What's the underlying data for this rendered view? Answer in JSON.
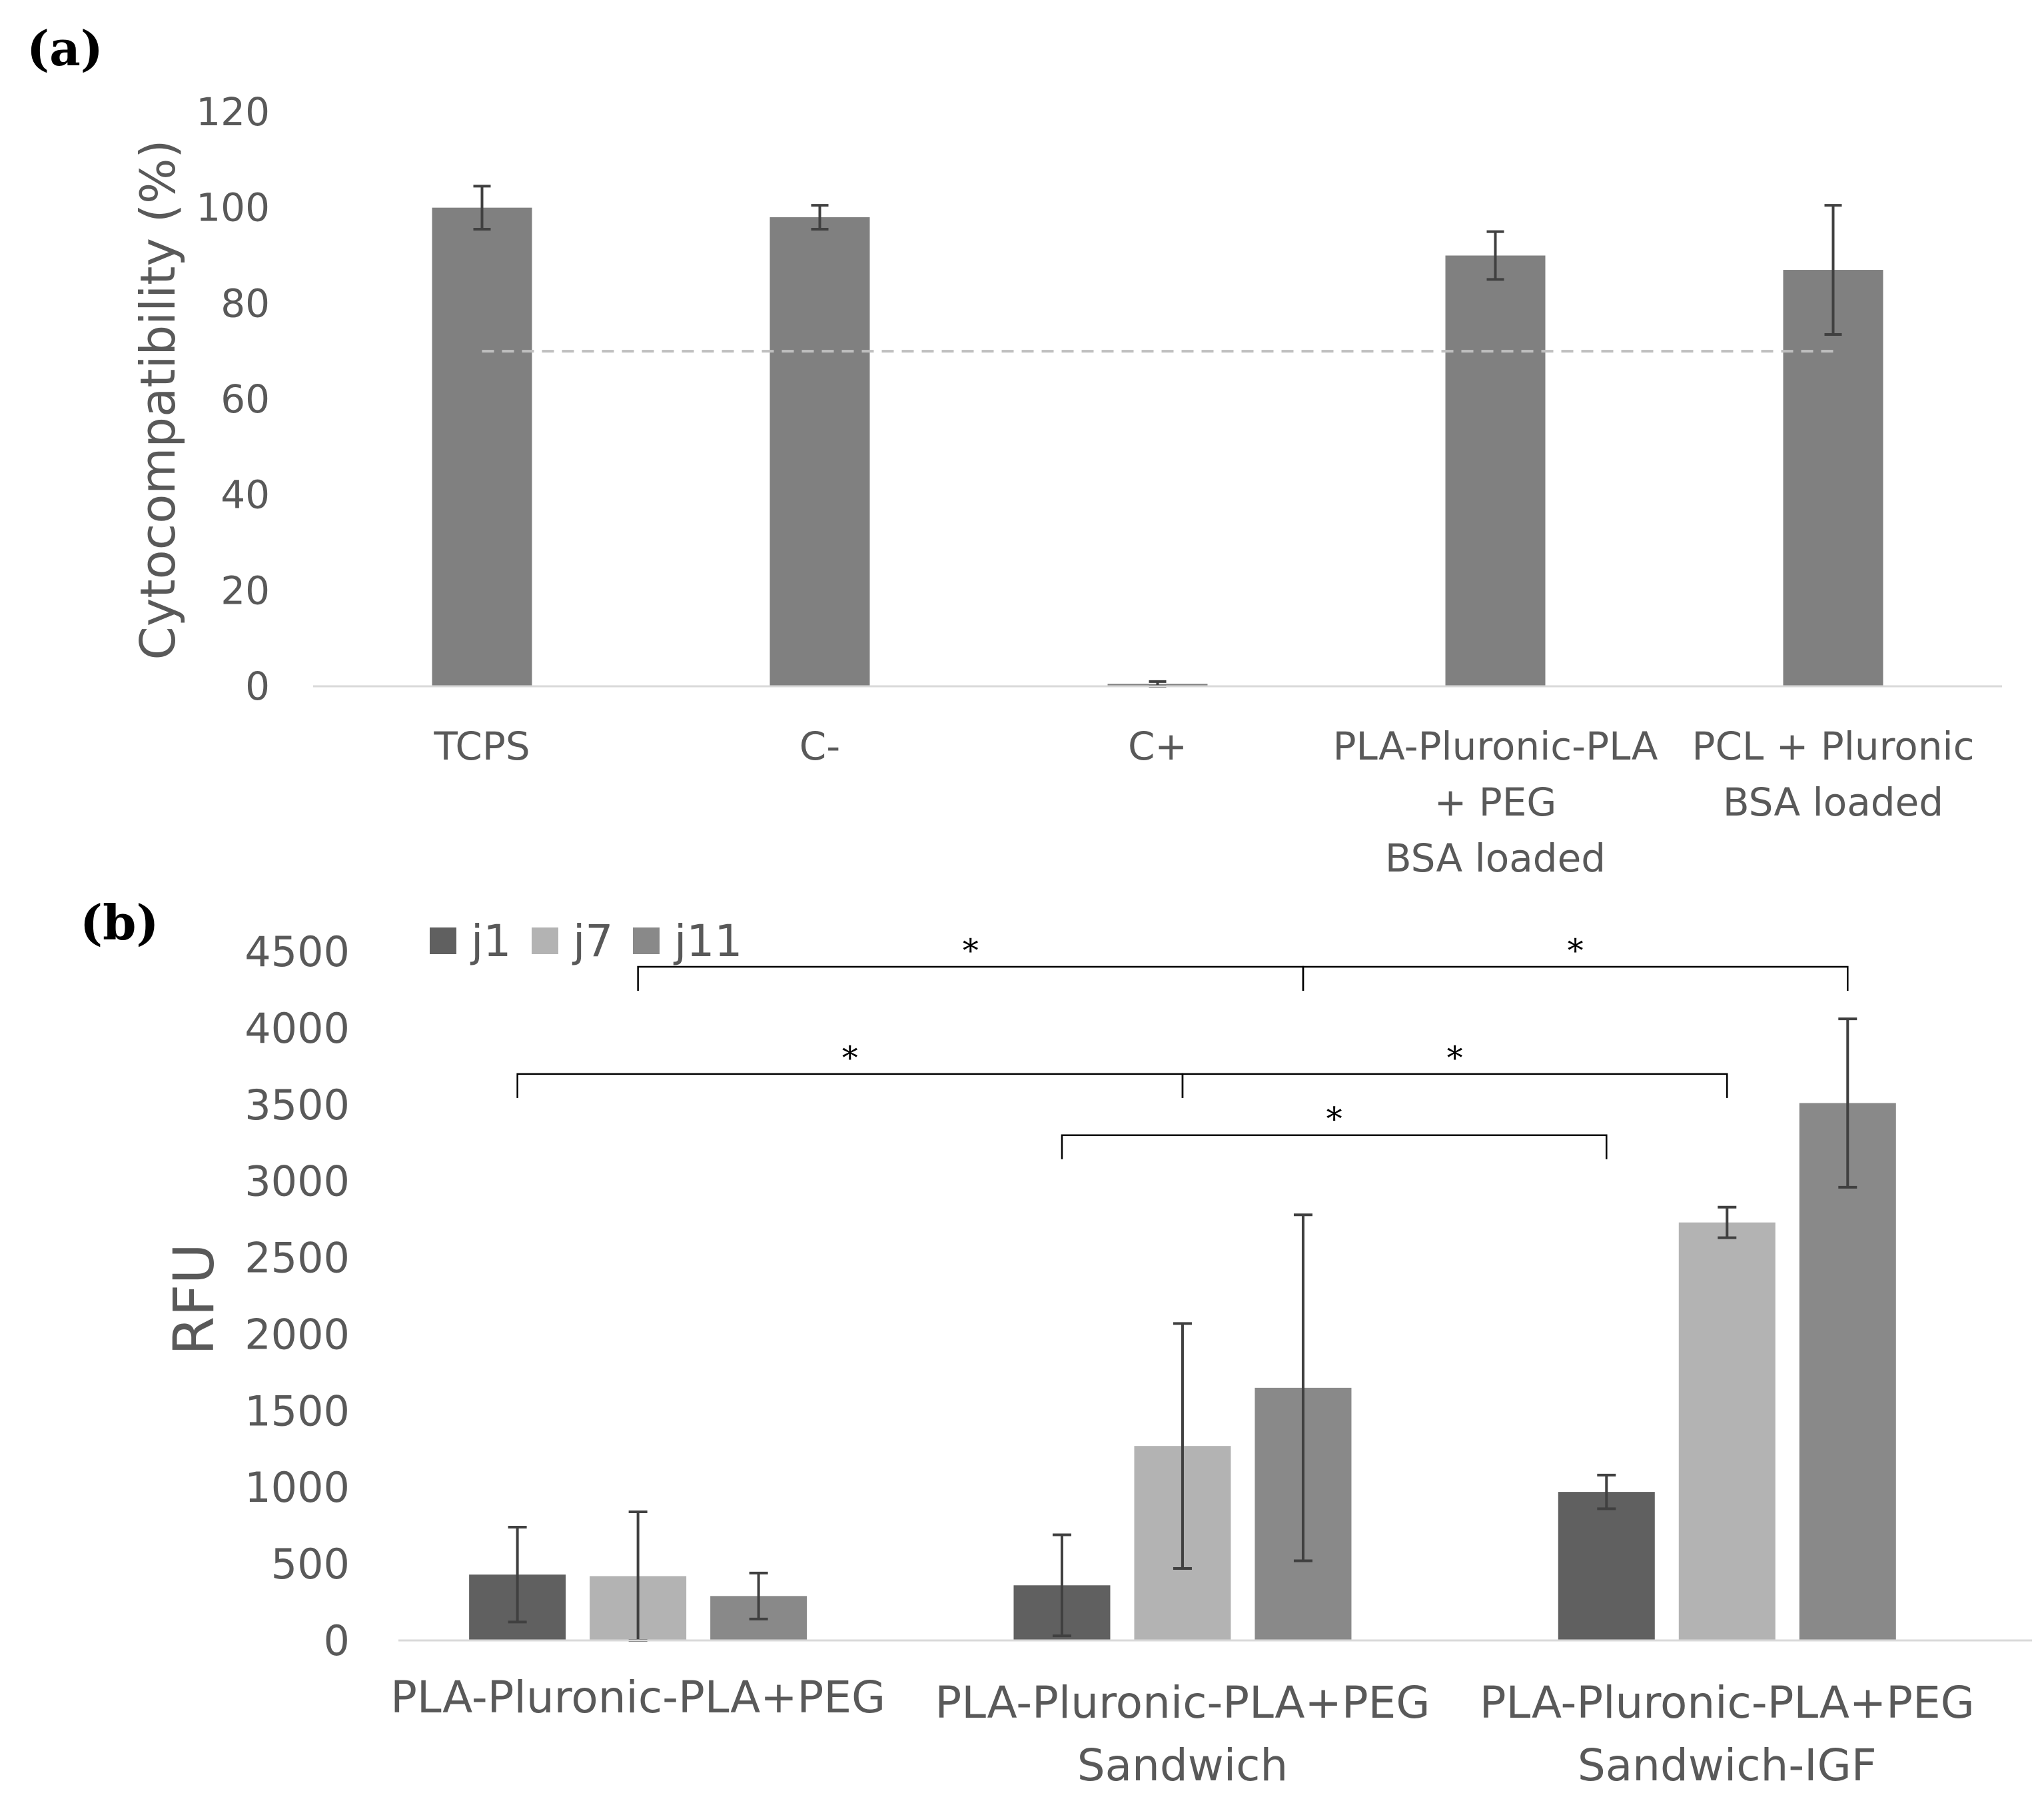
{
  "chart_data": [
    {
      "panel": "(a)",
      "type": "bar",
      "ylabel": "Cytocompatibility (%)",
      "ylim": [
        0,
        120
      ],
      "yticks": [
        "0",
        "20",
        "40",
        "60",
        "80",
        "100",
        "120"
      ],
      "categories": [
        [
          "TCPS"
        ],
        [
          "C-"
        ],
        [
          "C+"
        ],
        [
          "PLA-Pluronic-PLA",
          "+ PEG",
          "BSA loaded"
        ],
        [
          "PCL + Pluronic",
          "BSA loaded"
        ]
      ],
      "values": [
        100,
        98,
        0.5,
        90,
        87
      ],
      "errors": [
        4.5,
        2.5,
        0.5,
        5,
        13.5
      ],
      "threshold": 70,
      "bar_color": "#808080"
    },
    {
      "panel": "(b)",
      "type": "bar",
      "ylabel": "RFU",
      "ylim": [
        0,
        4500
      ],
      "yticks": [
        "0",
        "500",
        "1000",
        "1500",
        "2000",
        "2500",
        "3000",
        "3500",
        "4000",
        "4500"
      ],
      "categories": [
        [
          "PLA-Pluronic-PLA+PEG"
        ],
        [
          "PLA-Pluronic-PLA+PEG",
          "Sandwich"
        ],
        [
          "PLA-Pluronic-PLA+PEG",
          "Sandwich-IGF"
        ]
      ],
      "series": [
        {
          "name": "j1",
          "color": "#606060",
          "values": [
            430,
            360,
            970
          ],
          "errors": [
            310,
            330,
            110
          ]
        },
        {
          "name": "j7",
          "color": "#b3b3b3",
          "values": [
            420,
            1270,
            2730
          ],
          "errors": [
            420,
            800,
            100
          ]
        },
        {
          "name": "j11",
          "color": "#898989",
          "values": [
            290,
            1650,
            3510
          ],
          "errors": [
            150,
            1130,
            550
          ]
        }
      ],
      "significance": [
        {
          "label": "*",
          "from": [
            0,
            1
          ],
          "to": [
            1,
            2
          ],
          "level": 4400
        },
        {
          "label": "*",
          "from": [
            1,
            2
          ],
          "to": [
            2,
            2
          ],
          "level": 4400
        },
        {
          "label": "*",
          "from": [
            0,
            0
          ],
          "to": [
            1,
            1
          ],
          "level": 3700
        },
        {
          "label": "*",
          "from": [
            1,
            1
          ],
          "to": [
            2,
            1
          ],
          "level": 3700
        },
        {
          "label": "*",
          "from": [
            1,
            0
          ],
          "to": [
            2,
            0
          ],
          "level": 3300
        }
      ]
    }
  ]
}
